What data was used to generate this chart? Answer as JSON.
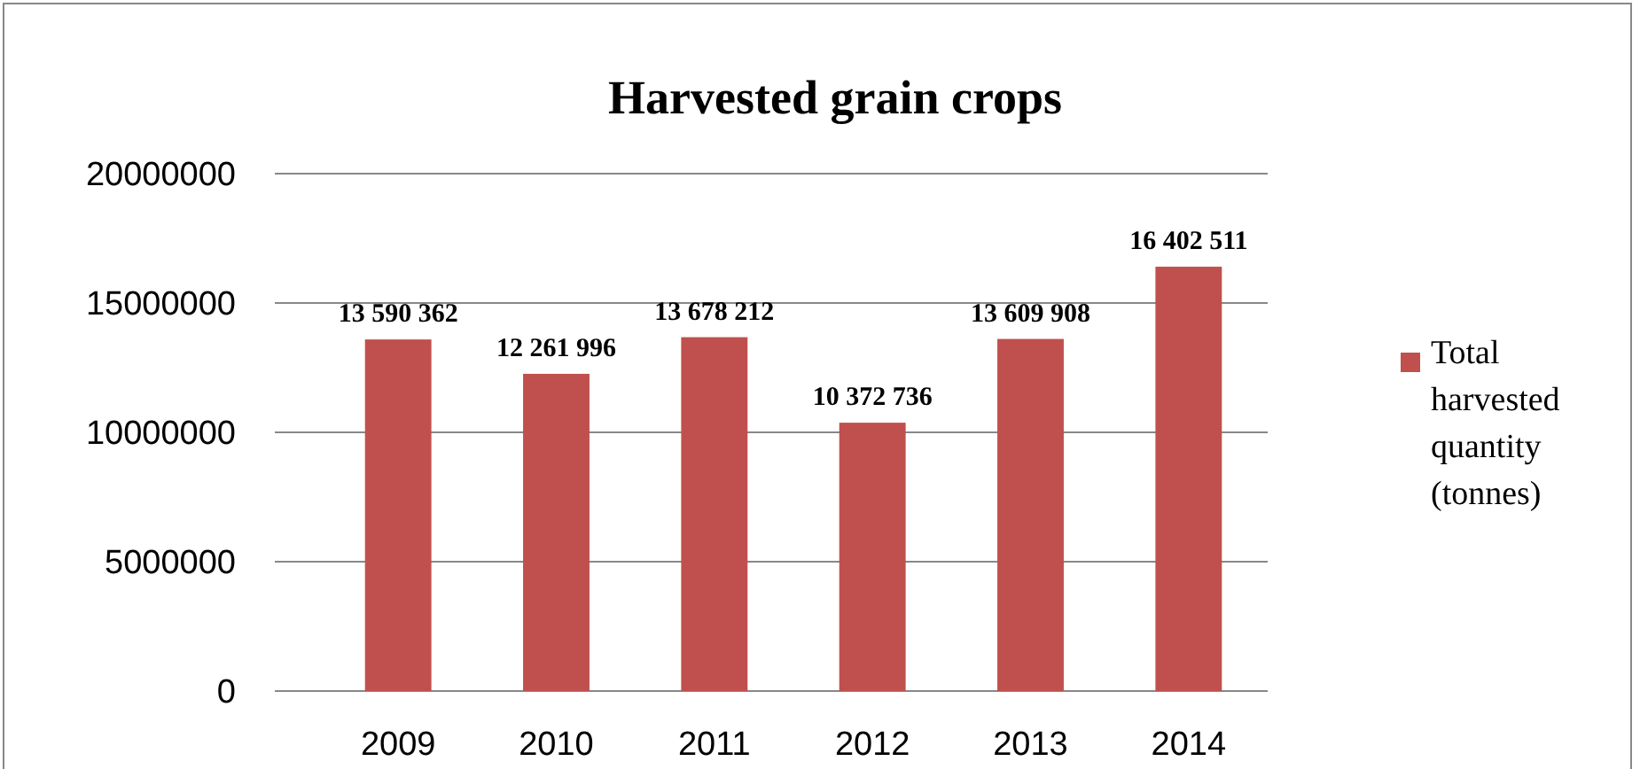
{
  "chart_data": {
    "type": "bar",
    "title": "Harvested grain crops",
    "categories": [
      "2009",
      "2010",
      "2011",
      "2012",
      "2013",
      "2014"
    ],
    "series": [
      {
        "name": "Total harvested quantity (tonnes)",
        "color": "#c0504d",
        "values": [
          13590362,
          12261996,
          13678212,
          10372736,
          13609908,
          16402511
        ],
        "value_labels": [
          "13 590 362",
          "12 261 996",
          "13 678 212",
          "10 372 736",
          "13 609 908",
          "16 402 511"
        ]
      }
    ],
    "ylim": [
      0,
      20000000
    ],
    "yticks": [
      0,
      5000000,
      10000000,
      15000000,
      20000000
    ],
    "grid": "y",
    "legend": "right"
  }
}
